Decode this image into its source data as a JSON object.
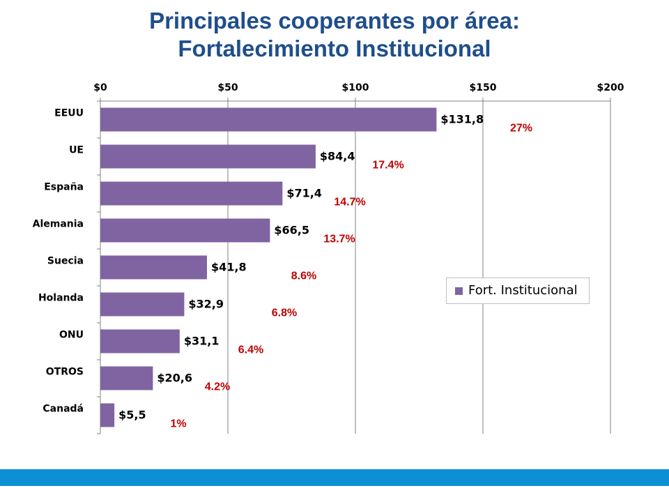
{
  "title_line1": "Principales cooperantes por área:",
  "title_line2": "Fortalecimiento Institucional",
  "colors": {
    "bar": "#8064a2",
    "pct": "#c00000",
    "grid": "#808080",
    "title": "#1f4e8c",
    "footer": "#0d8fd6"
  },
  "chart_data": {
    "type": "bar",
    "orientation": "horizontal",
    "categories": [
      "EEUU",
      "UE",
      "España",
      "Alemania",
      "Suecia",
      "Holanda",
      "ONU",
      "OTROS",
      "Canadá"
    ],
    "series": [
      {
        "name": "Fort. Institucional",
        "values": [
          131.8,
          84.4,
          71.4,
          66.5,
          41.8,
          32.9,
          31.1,
          20.6,
          5.5
        ],
        "labels": [
          "$131,8",
          "$84,4",
          "$71,4",
          "$66,5",
          "$41,8",
          "$32,9",
          "$31,1",
          "$20,6",
          "$5,5"
        ]
      }
    ],
    "percent_labels": [
      "27%",
      "17.4%",
      "14.7%",
      "13.7%",
      "8.6%",
      "6.8%",
      "6.4%",
      "4.2%",
      "1%"
    ],
    "x_ticks": [
      "$0",
      "$50",
      "$100",
      "$150",
      "$200"
    ],
    "xlim": [
      0,
      200
    ],
    "x_axis_position": "top",
    "grid": true,
    "legend_position": "right"
  }
}
